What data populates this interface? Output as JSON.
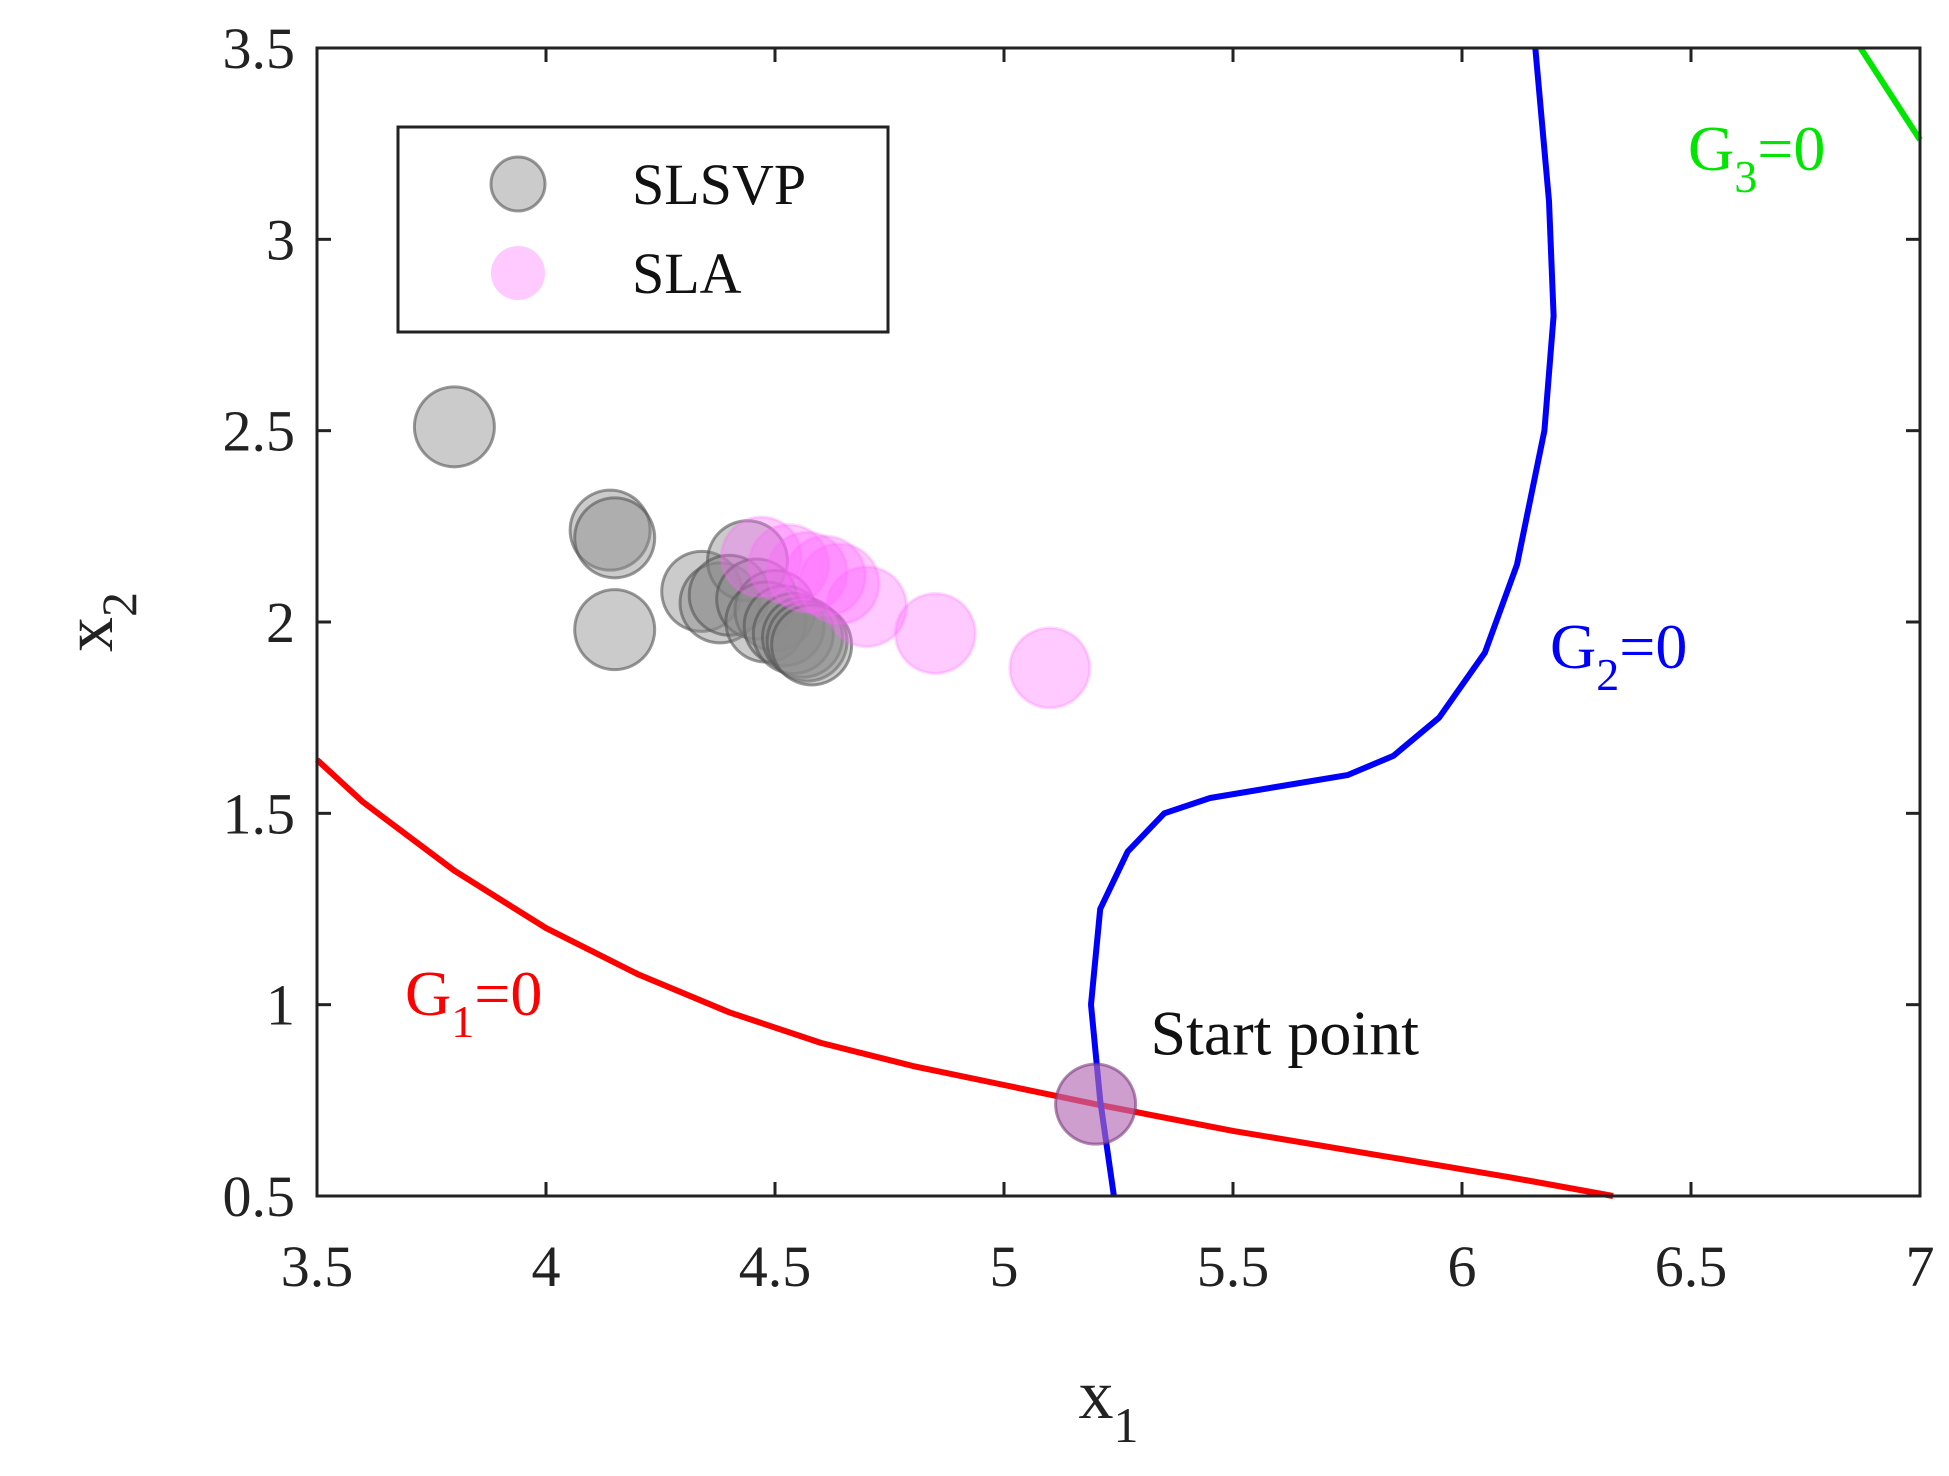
{
  "chart_data": {
    "type": "scatter",
    "xlim": [
      3.5,
      7
    ],
    "ylim": [
      0.5,
      3.5
    ],
    "x_ticks": [
      "3.5",
      "4",
      "4.5",
      "5",
      "5.5",
      "6",
      "6.5",
      "7"
    ],
    "y_ticks": [
      "0.5",
      "1",
      "1.5",
      "2",
      "2.5",
      "3",
      "3.5"
    ],
    "x_tick_values": [
      3.5,
      4,
      4.5,
      5,
      5.5,
      6,
      6.5,
      7
    ],
    "y_tick_values": [
      0.5,
      1,
      1.5,
      2,
      2.5,
      3,
      3.5
    ],
    "xlabel": {
      "base": "x",
      "sub": "1"
    },
    "ylabel": {
      "base": "x",
      "sub": "2"
    },
    "grid": false,
    "legend_position": "top-left",
    "series": [
      {
        "name": "SLSVP",
        "color": "#8c8c8c",
        "edge_color": "#555555",
        "points": [
          {
            "x": 3.8,
            "y": 2.51
          },
          {
            "x": 4.14,
            "y": 2.24
          },
          {
            "x": 4.15,
            "y": 2.22
          },
          {
            "x": 4.15,
            "y": 1.98
          },
          {
            "x": 4.34,
            "y": 2.08
          },
          {
            "x": 4.38,
            "y": 2.05
          },
          {
            "x": 4.44,
            "y": 2.16
          },
          {
            "x": 4.4,
            "y": 2.07
          },
          {
            "x": 4.46,
            "y": 2.06
          },
          {
            "x": 4.5,
            "y": 2.03
          },
          {
            "x": 4.48,
            "y": 2.0
          },
          {
            "x": 4.52,
            "y": 1.99
          },
          {
            "x": 4.54,
            "y": 1.97
          },
          {
            "x": 4.56,
            "y": 1.96
          },
          {
            "x": 4.57,
            "y": 1.95
          },
          {
            "x": 4.58,
            "y": 1.94
          }
        ]
      },
      {
        "name": "SLA",
        "color": "#ff66ff",
        "edge_color": "#ff66ff",
        "points": [
          {
            "x": 4.47,
            "y": 2.17
          },
          {
            "x": 4.53,
            "y": 2.15
          },
          {
            "x": 4.57,
            "y": 2.13
          },
          {
            "x": 4.61,
            "y": 2.12
          },
          {
            "x": 4.64,
            "y": 2.1
          },
          {
            "x": 4.7,
            "y": 2.04
          },
          {
            "x": 4.85,
            "y": 1.97
          },
          {
            "x": 5.1,
            "y": 1.88
          }
        ]
      },
      {
        "name": "Start point",
        "color": "#b46cb4",
        "edge_color": "#7a3a7a",
        "points": [
          {
            "x": 5.2,
            "y": 0.74
          }
        ]
      }
    ],
    "curves": [
      {
        "label_base": "G",
        "label_sub": "1",
        "label_rest": "=0",
        "color": "#ff0000",
        "points": [
          [
            3.5,
            1.64
          ],
          [
            3.6,
            1.53
          ],
          [
            3.8,
            1.35
          ],
          [
            4.0,
            1.2
          ],
          [
            4.2,
            1.08
          ],
          [
            4.4,
            0.98
          ],
          [
            4.6,
            0.9
          ],
          [
            4.8,
            0.84
          ],
          [
            5.0,
            0.79
          ],
          [
            5.2,
            0.74
          ],
          [
            5.5,
            0.67
          ],
          [
            5.8,
            0.61
          ],
          [
            6.1,
            0.55
          ],
          [
            6.33,
            0.5
          ]
        ]
      },
      {
        "label_base": "G",
        "label_sub": "2",
        "label_rest": "=0",
        "color": "#0000ff",
        "points": [
          [
            5.24,
            0.5
          ],
          [
            5.21,
            0.75
          ],
          [
            5.19,
            1.0
          ],
          [
            5.21,
            1.25
          ],
          [
            5.27,
            1.4
          ],
          [
            5.35,
            1.5
          ],
          [
            5.45,
            1.54
          ],
          [
            5.6,
            1.57
          ],
          [
            5.75,
            1.6
          ],
          [
            5.85,
            1.65
          ],
          [
            5.95,
            1.75
          ],
          [
            6.05,
            1.92
          ],
          [
            6.12,
            2.15
          ],
          [
            6.18,
            2.5
          ],
          [
            6.2,
            2.8
          ],
          [
            6.19,
            3.1
          ],
          [
            6.16,
            3.5
          ]
        ]
      },
      {
        "label_base": "G",
        "label_sub": "3",
        "label_rest": "=0",
        "color": "#00e600",
        "points": [
          [
            6.87,
            3.5
          ],
          [
            7.0,
            3.26
          ]
        ]
      }
    ],
    "annotation": {
      "text": "Start point",
      "x": 5.32,
      "y": 0.87
    }
  }
}
